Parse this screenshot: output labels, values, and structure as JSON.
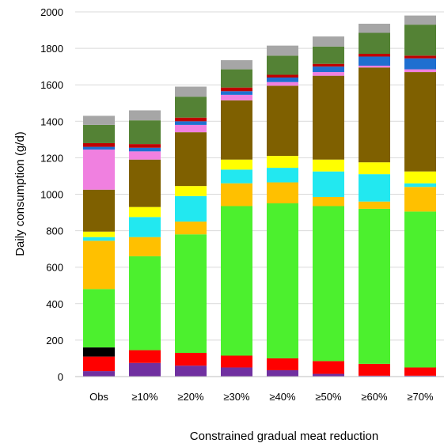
{
  "chart_data": {
    "type": "stacked-bar",
    "categories": [
      "Obs",
      "≥10%",
      "≥20%",
      "≥30%",
      "≥40%",
      "≥50%",
      "≥60%",
      "≥70%"
    ],
    "ylabel": "Daily consumption (g/d)",
    "xlabel": "Constrained gradual meat reduction",
    "ylim": [
      0,
      2000
    ],
    "yticks": [
      0,
      200,
      400,
      600,
      800,
      1000,
      1200,
      1400,
      1600,
      1800,
      2000
    ],
    "grid": true,
    "series": [
      {
        "color": "#7030a0",
        "values": [
          30,
          75,
          60,
          50,
          35,
          15,
          5,
          5
        ]
      },
      {
        "color": "#ff0000",
        "values": [
          80,
          70,
          70,
          65,
          65,
          70,
          65,
          45
        ]
      },
      {
        "color": "#000000",
        "values": [
          50,
          0,
          0,
          0,
          0,
          0,
          0,
          0
        ]
      },
      {
        "color": "#4cf02e",
        "values": [
          320,
          515,
          650,
          820,
          850,
          850,
          850,
          855
        ]
      },
      {
        "color": "#ffc000",
        "values": [
          265,
          105,
          70,
          125,
          115,
          50,
          40,
          135
        ]
      },
      {
        "color": "#22e8f0",
        "values": [
          20,
          110,
          140,
          75,
          80,
          140,
          150,
          20
        ]
      },
      {
        "color": "#ffff00",
        "values": [
          30,
          55,
          55,
          55,
          65,
          65,
          65,
          65
        ]
      },
      {
        "color": "#7f6000",
        "values": [
          230,
          260,
          295,
          325,
          385,
          460,
          520,
          545
        ]
      },
      {
        "color": "#f080e0",
        "values": [
          220,
          45,
          40,
          30,
          20,
          20,
          10,
          15
        ]
      },
      {
        "color": "#1f6fd0",
        "values": [
          15,
          20,
          20,
          20,
          25,
          30,
          50,
          60
        ]
      },
      {
        "color": "#c00000",
        "values": [
          20,
          20,
          20,
          20,
          15,
          15,
          15,
          15
        ]
      },
      {
        "color": "#548235",
        "values": [
          100,
          130,
          115,
          100,
          105,
          95,
          115,
          170
        ]
      },
      {
        "color": "#a6a6a6",
        "values": [
          50,
          55,
          55,
          50,
          55,
          55,
          50,
          50
        ]
      }
    ]
  }
}
